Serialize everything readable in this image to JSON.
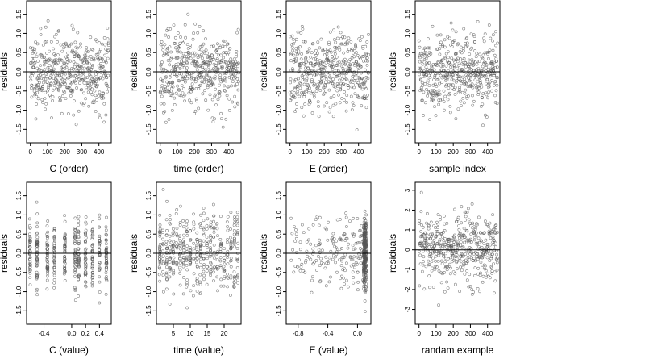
{
  "chart_data": [
    {
      "type": "scatter",
      "xlabel": "C (order)",
      "ylabel": "residuals",
      "xlim": [
        -22,
        472
      ],
      "ylim": [
        -1.85,
        1.85
      ],
      "xticks": [
        0,
        100,
        200,
        300,
        400
      ],
      "yticks": [
        -1.5,
        -1.0,
        -0.5,
        0.0,
        0.5,
        1.0,
        1.5
      ],
      "xtick_labels": [
        "0",
        "100",
        "200",
        "300",
        "400"
      ],
      "ytick_labels": [
        "-1.5",
        "-1.0",
        "-0.5",
        "0.0",
        "0.5",
        "1.0",
        "1.5"
      ],
      "hline": 0,
      "grid": false,
      "dist": "order",
      "seed": 11,
      "n": 460
    },
    {
      "type": "scatter",
      "xlabel": "time (order)",
      "ylabel": "residuals",
      "xlim": [
        -22,
        472
      ],
      "ylim": [
        -1.85,
        1.85
      ],
      "xticks": [
        0,
        100,
        200,
        300,
        400
      ],
      "yticks": [
        -1.5,
        -1.0,
        -0.5,
        0.0,
        0.5,
        1.0,
        1.5
      ],
      "xtick_labels": [
        "0",
        "100",
        "200",
        "300",
        "400"
      ],
      "ytick_labels": [
        "-1.5",
        "-1.0",
        "-0.5",
        "0.0",
        "0.5",
        "1.0",
        "1.5"
      ],
      "hline": 0,
      "grid": false,
      "dist": "order",
      "seed": 23,
      "n": 460
    },
    {
      "type": "scatter",
      "xlabel": "E (order)",
      "ylabel": "residuals",
      "xlim": [
        -22,
        472
      ],
      "ylim": [
        -1.85,
        1.85
      ],
      "xticks": [
        0,
        100,
        200,
        300,
        400
      ],
      "yticks": [
        -1.5,
        -1.0,
        -0.5,
        0.0,
        0.5,
        1.0,
        1.5
      ],
      "xtick_labels": [
        "0",
        "100",
        "200",
        "300",
        "400"
      ],
      "ytick_labels": [
        "-1.5",
        "-1.0",
        "-0.5",
        "0.0",
        "0.5",
        "1.0",
        "1.5"
      ],
      "hline": 0,
      "grid": false,
      "dist": "order",
      "seed": 37,
      "n": 460
    },
    {
      "type": "scatter",
      "xlabel": "sample index",
      "ylabel": "residuals",
      "xlim": [
        -22,
        472
      ],
      "ylim": [
        -1.85,
        1.85
      ],
      "xticks": [
        0,
        100,
        200,
        300,
        400
      ],
      "yticks": [
        -1.5,
        -1.0,
        -0.5,
        0.0,
        0.5,
        1.0,
        1.5
      ],
      "xtick_labels": [
        "0",
        "100",
        "200",
        "300",
        "400"
      ],
      "ytick_labels": [
        "-1.5",
        "-1.0",
        "-0.5",
        "0.0",
        "0.5",
        "1.0",
        "1.5"
      ],
      "hline": 0,
      "grid": false,
      "dist": "order",
      "seed": 41,
      "n": 460
    },
    {
      "type": "scatter",
      "xlabel": "C (value)",
      "ylabel": "residuals",
      "xlim": [
        -0.65,
        0.57
      ],
      "ylim": [
        -1.85,
        1.85
      ],
      "xticks": [
        -0.4,
        0.0,
        0.2,
        0.4
      ],
      "yticks": [
        -1.5,
        -1.0,
        -0.5,
        0.0,
        0.5,
        1.0,
        1.5
      ],
      "xtick_labels": [
        "-0.4",
        "0.0",
        "0.2",
        "0.4"
      ],
      "ytick_labels": [
        "-1.5",
        "-1.0",
        "-0.5",
        "0.0",
        "0.5",
        "1.0",
        "1.5"
      ],
      "hline": 0,
      "grid": false,
      "dist": "clustered",
      "cluster_x": [
        -0.6,
        -0.5,
        -0.35,
        -0.25,
        -0.1,
        0.05,
        0.1,
        0.2,
        0.3,
        0.4,
        0.5
      ],
      "seed": 53,
      "n": 460
    },
    {
      "type": "scatter",
      "xlabel": "time (value)",
      "ylabel": "residuals",
      "xlim": [
        0,
        25
      ],
      "ylim": [
        -1.85,
        1.85
      ],
      "xticks": [
        5,
        10,
        15,
        20
      ],
      "yticks": [
        -1.5,
        -1.0,
        -0.5,
        0.0,
        0.5,
        1.0,
        1.5
      ],
      "xtick_labels": [
        "5",
        "10",
        "15",
        "20"
      ],
      "ytick_labels": [
        "-1.5",
        "-1.0",
        "-0.5",
        "0.0",
        "0.5",
        "1.0",
        "1.5"
      ],
      "hline": 0,
      "grid": false,
      "dist": "clustered",
      "cluster_x": [
        1,
        2,
        3,
        4,
        5,
        6,
        7,
        8,
        9,
        10,
        11,
        12,
        13,
        14,
        15,
        16,
        17,
        18,
        19,
        20,
        21,
        22,
        23,
        24
      ],
      "seed": 67,
      "n": 460
    },
    {
      "type": "scatter",
      "xlabel": "E (value)",
      "ylabel": "residuals",
      "xlim": [
        -0.96,
        0.18
      ],
      "ylim": [
        -1.85,
        1.85
      ],
      "xticks": [
        -0.8,
        -0.4,
        0.0
      ],
      "yticks": [
        -1.5,
        -1.0,
        -0.5,
        0.0,
        0.5,
        1.0,
        1.5
      ],
      "xtick_labels": [
        "-0.8",
        "-0.4",
        "0.0"
      ],
      "ytick_labels": [
        "-1.5",
        "-1.0",
        "-0.5",
        "0.0",
        "0.5",
        "1.0",
        "1.5"
      ],
      "hline": 0,
      "grid": false,
      "dist": "skewed",
      "seed": 79,
      "n": 460
    },
    {
      "type": "scatter",
      "xlabel": "randam example",
      "ylabel": "residuals",
      "xlim": [
        -22,
        472
      ],
      "ylim": [
        -3.75,
        3.4
      ],
      "xticks": [
        0,
        100,
        200,
        300,
        400
      ],
      "yticks": [
        -3,
        -2,
        -1,
        0,
        1,
        2,
        3
      ],
      "xtick_labels": [
        "0",
        "100",
        "200",
        "300",
        "400"
      ],
      "ytick_labels": [
        "-3",
        "-2",
        "-1",
        "0",
        "1",
        "2",
        "3"
      ],
      "hline": 0,
      "grid": false,
      "dist": "normal",
      "seed": 97,
      "n": 460
    }
  ],
  "colors": {
    "points": "#555555",
    "axes": "#000000",
    "background": "#ffffff"
  }
}
